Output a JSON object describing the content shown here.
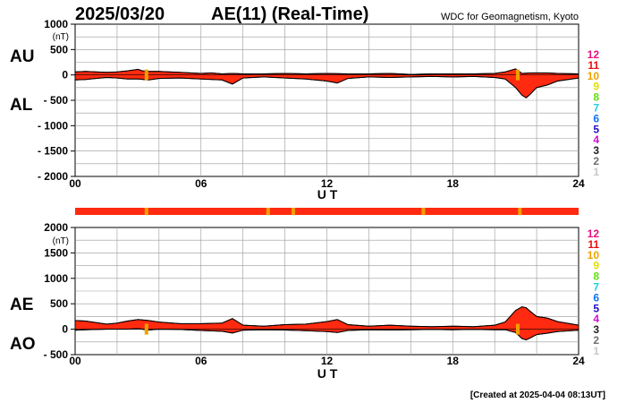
{
  "header": {
    "date": "2025/03/20",
    "title": "AE(11) (Real-Time)",
    "source": "WDC for Geomagnetism, Kyoto"
  },
  "footer": {
    "created": "[Created at 2025-04-04 08:13UT]"
  },
  "legend": {
    "items": [
      {
        "label": "12",
        "color": "#e8107a"
      },
      {
        "label": "11",
        "color": "#e81010"
      },
      {
        "label": "10",
        "color": "#f0a000"
      },
      {
        "label": "9",
        "color": "#e0e000"
      },
      {
        "label": "8",
        "color": "#60e010"
      },
      {
        "label": "7",
        "color": "#20d0e0"
      },
      {
        "label": "6",
        "color": "#1070f0"
      },
      {
        "label": "5",
        "color": "#2010c0"
      },
      {
        "label": "4",
        "color": "#d010d0"
      },
      {
        "label": "3",
        "color": "#202020"
      },
      {
        "label": "2",
        "color": "#707070"
      },
      {
        "label": "1",
        "color": "#c8c8c8"
      }
    ]
  },
  "colors": {
    "fill": "#ff2a10",
    "orange": "#f0a000",
    "grid": "#999999"
  },
  "chart_data": [
    {
      "type": "area",
      "panel": "AU/AL",
      "labels": {
        "upper": "AU",
        "lower": "AL"
      },
      "ylabel": "(nT)",
      "xlabel": "U T",
      "xlim": [
        0,
        24
      ],
      "xticks": [
        "00",
        "06",
        "12",
        "18",
        "24"
      ],
      "ylim": [
        -2000,
        1000
      ],
      "yticks": [
        "1000",
        "500",
        "0",
        "- 500",
        "- 1000",
        "- 1500",
        "- 2000"
      ],
      "grid": true,
      "series": [
        {
          "name": "AU",
          "x": [
            0,
            0.5,
            1,
            1.5,
            2,
            2.5,
            3,
            3.2,
            3.5,
            4,
            4.5,
            5,
            5.5,
            6,
            6.5,
            7,
            7.5,
            8,
            9,
            10,
            11,
            12,
            13,
            14,
            15,
            16,
            17,
            18,
            19,
            20,
            20.5,
            21,
            21.3,
            21.7,
            22,
            22.5,
            23,
            24
          ],
          "values": [
            60,
            70,
            60,
            50,
            60,
            80,
            110,
            80,
            70,
            70,
            60,
            50,
            40,
            30,
            40,
            20,
            30,
            20,
            20,
            30,
            20,
            30,
            20,
            20,
            30,
            10,
            20,
            20,
            20,
            30,
            60,
            120,
            30,
            40,
            40,
            40,
            30,
            20
          ]
        },
        {
          "name": "AL",
          "x": [
            0,
            0.5,
            1,
            1.5,
            2,
            2.5,
            3,
            3.5,
            4,
            5,
            6,
            7,
            7.5,
            8,
            9,
            10,
            11,
            12,
            12.5,
            13,
            14,
            15,
            16,
            17,
            18,
            19,
            20,
            20.5,
            21,
            21.3,
            21.5,
            21.7,
            22,
            22.5,
            23,
            24
          ],
          "values": [
            -100,
            -90,
            -70,
            -50,
            -60,
            -80,
            -80,
            -100,
            -70,
            -60,
            -80,
            -100,
            -180,
            -60,
            -40,
            -60,
            -80,
            -120,
            -160,
            -70,
            -40,
            -50,
            -40,
            -30,
            -40,
            -30,
            -50,
            -80,
            -250,
            -400,
            -450,
            -380,
            -250,
            -200,
            -120,
            -60
          ]
        }
      ],
      "flags": [
        3.4,
        21.1
      ]
    },
    {
      "type": "area",
      "panel": "AE/AO",
      "labels": {
        "upper": "AE",
        "lower": "AO"
      },
      "ylabel": "(nT)",
      "xlabel": "U T",
      "xlim": [
        0,
        24
      ],
      "xticks": [
        "00",
        "06",
        "12",
        "18",
        "24"
      ],
      "ylim": [
        -500,
        2000
      ],
      "yticks": [
        "2000",
        "1500",
        "1000",
        "500",
        "0",
        "- 500"
      ],
      "grid": true,
      "series": [
        {
          "name": "AE",
          "x": [
            0,
            0.5,
            1,
            1.5,
            2,
            2.5,
            3,
            3.5,
            4,
            5,
            6,
            7,
            7.5,
            8,
            9,
            10,
            11,
            12,
            12.5,
            13,
            14,
            15,
            16,
            17,
            18,
            19,
            20,
            20.5,
            21,
            21.3,
            21.5,
            21.7,
            22,
            22.5,
            23,
            24
          ],
          "values": [
            170,
            160,
            130,
            100,
            120,
            160,
            190,
            170,
            140,
            110,
            110,
            120,
            210,
            80,
            60,
            90,
            100,
            150,
            190,
            90,
            60,
            80,
            60,
            50,
            60,
            50,
            80,
            140,
            370,
            440,
            420,
            350,
            250,
            220,
            150,
            80
          ]
        },
        {
          "name": "AO",
          "x": [
            0,
            0.5,
            1,
            1.5,
            2,
            2.5,
            3,
            3.5,
            4,
            5,
            6,
            7,
            7.5,
            8,
            9,
            10,
            11,
            12,
            12.5,
            13,
            14,
            15,
            16,
            17,
            18,
            19,
            20,
            20.5,
            21,
            21.3,
            21.5,
            21.7,
            22,
            22.5,
            23,
            24
          ],
          "values": [
            -20,
            -10,
            -5,
            0,
            0,
            0,
            10,
            -15,
            0,
            -5,
            -25,
            -40,
            -75,
            -20,
            -10,
            -15,
            -30,
            -45,
            -65,
            -25,
            -10,
            -15,
            -10,
            -5,
            -10,
            -5,
            -10,
            -10,
            -65,
            -185,
            -210,
            -170,
            -105,
            -80,
            -45,
            -20
          ]
        }
      ],
      "flags": [
        3.4,
        21.1
      ]
    }
  ],
  "strip": {
    "flags": [
      3.4,
      9.2,
      10.4,
      16.6,
      21.2
    ]
  }
}
